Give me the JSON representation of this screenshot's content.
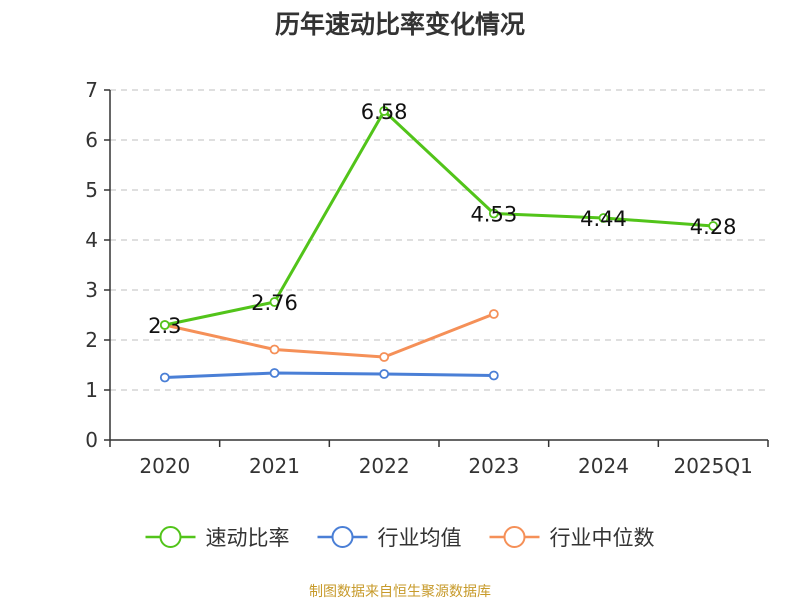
{
  "chart_data": {
    "type": "line",
    "title": "历年速动比率变化情况",
    "categories": [
      "2020",
      "2021",
      "2022",
      "2023",
      "2024",
      "2025Q1"
    ],
    "ylim": [
      0,
      7
    ],
    "yticks": [
      "0",
      "1",
      "2",
      "3",
      "4",
      "5",
      "6",
      "7"
    ],
    "grid": true,
    "legend_position": "bottom",
    "series": [
      {
        "name": "速动比率",
        "color": "#52c41a",
        "values": [
          2.3,
          2.76,
          6.58,
          4.53,
          4.44,
          4.28
        ],
        "labels": [
          "2.3",
          "2.76",
          "6.58",
          "4.53",
          "4.44",
          "4.28"
        ],
        "show_labels": true
      },
      {
        "name": "行业均值",
        "color": "#4a7fd6",
        "values": [
          1.25,
          1.34,
          1.32,
          1.29,
          null,
          null
        ],
        "show_labels": false
      },
      {
        "name": "行业中位数",
        "color": "#f59058",
        "values": [
          2.3,
          1.81,
          1.66,
          2.52,
          null,
          null
        ],
        "show_labels": false
      }
    ],
    "source": "制图数据来自恒生聚源数据库",
    "source_color": "#c79a2a"
  }
}
